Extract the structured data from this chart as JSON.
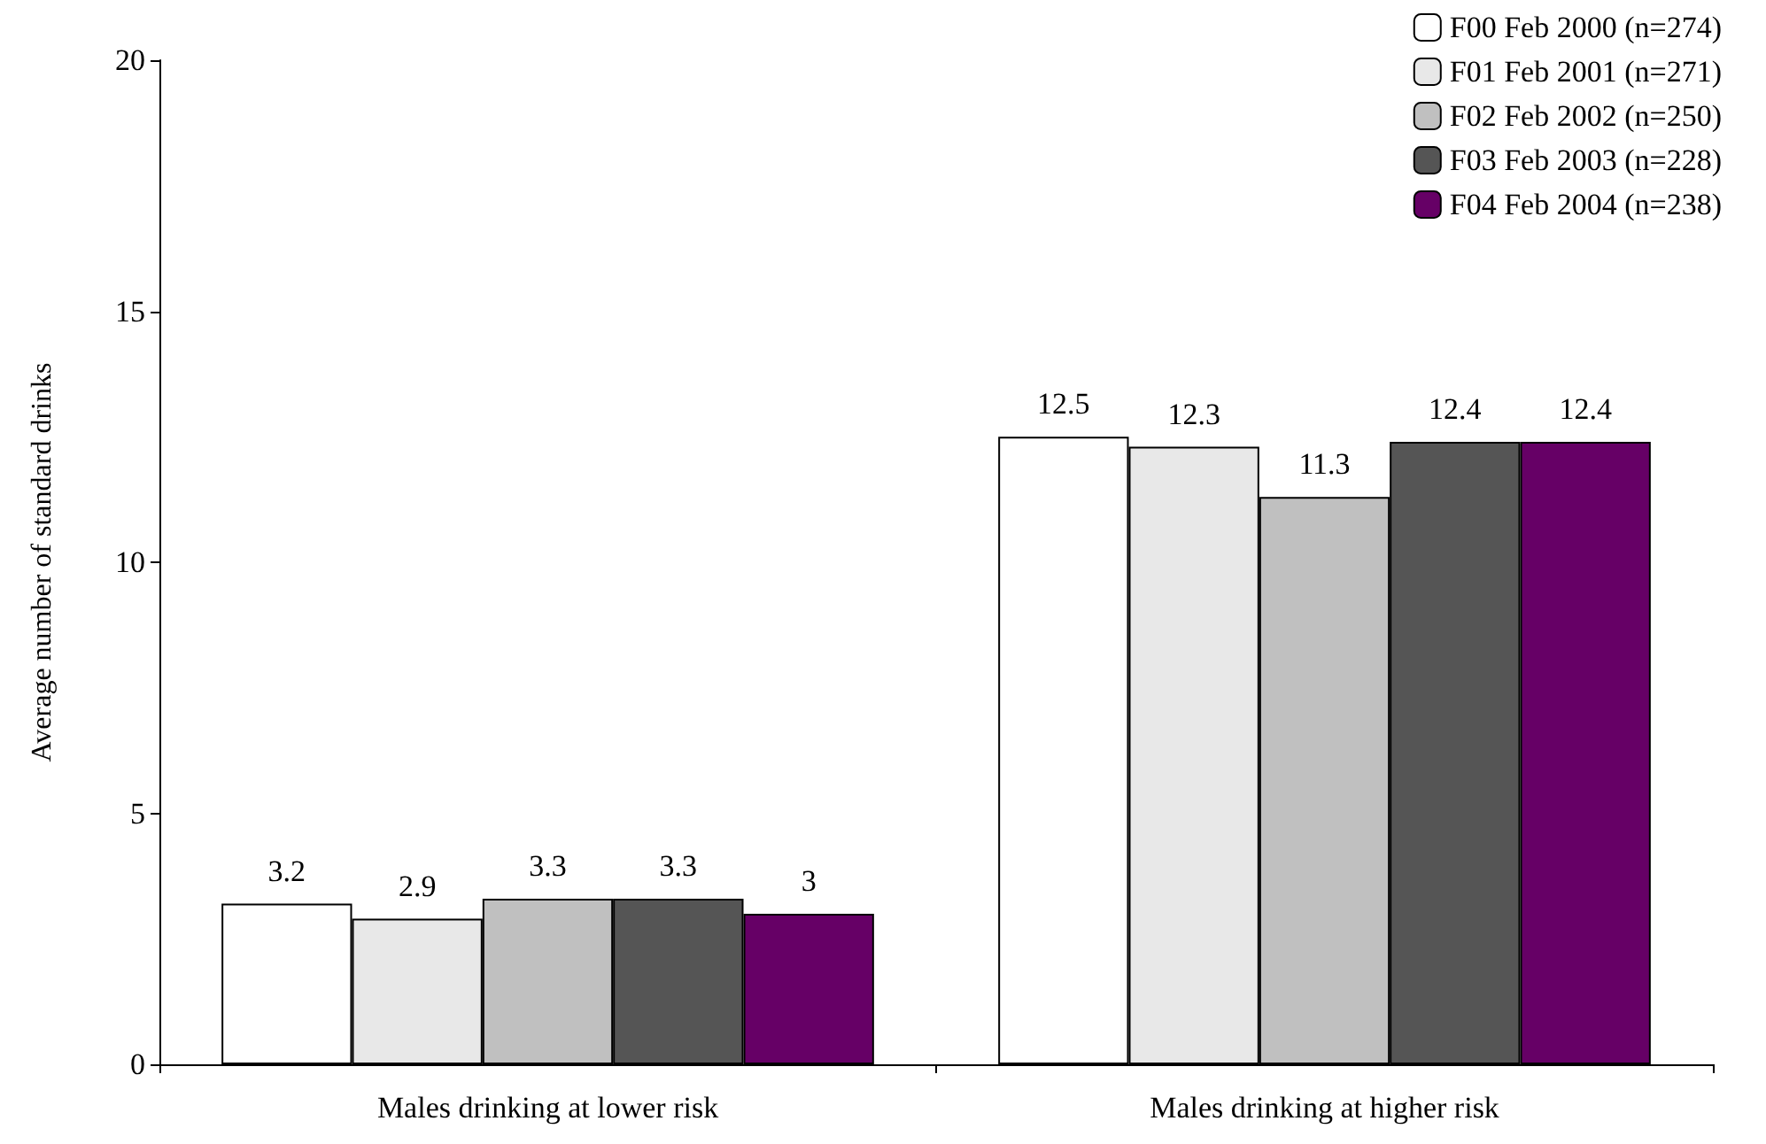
{
  "chart_data": {
    "type": "bar",
    "ylabel": "Average number of standard drinks",
    "categories": [
      "Males drinking at lower risk",
      "Males drinking at higher risk"
    ],
    "series": [
      {
        "name": "F00 Feb 2000 (n=274)",
        "color": "#ffffff",
        "values": [
          3.2,
          12.5
        ]
      },
      {
        "name": "F01 Feb 2001 (n=271)",
        "color": "#e8e8e8",
        "values": [
          2.9,
          12.3
        ]
      },
      {
        "name": "F02 Feb 2002 (n=250)",
        "color": "#c0c0c0",
        "values": [
          3.3,
          11.3
        ]
      },
      {
        "name": "F03 Feb 2003 (n=228)",
        "color": "#555555",
        "values": [
          3.3,
          12.4
        ]
      },
      {
        "name": "F04 Feb 2004 (n=238)",
        "color": "#660066",
        "values": [
          3,
          12.4
        ]
      }
    ],
    "ylim": [
      0,
      20
    ],
    "yticks": [
      0,
      5,
      10,
      15,
      20
    ],
    "grid": false,
    "legend": "top right",
    "data_labels": true
  }
}
